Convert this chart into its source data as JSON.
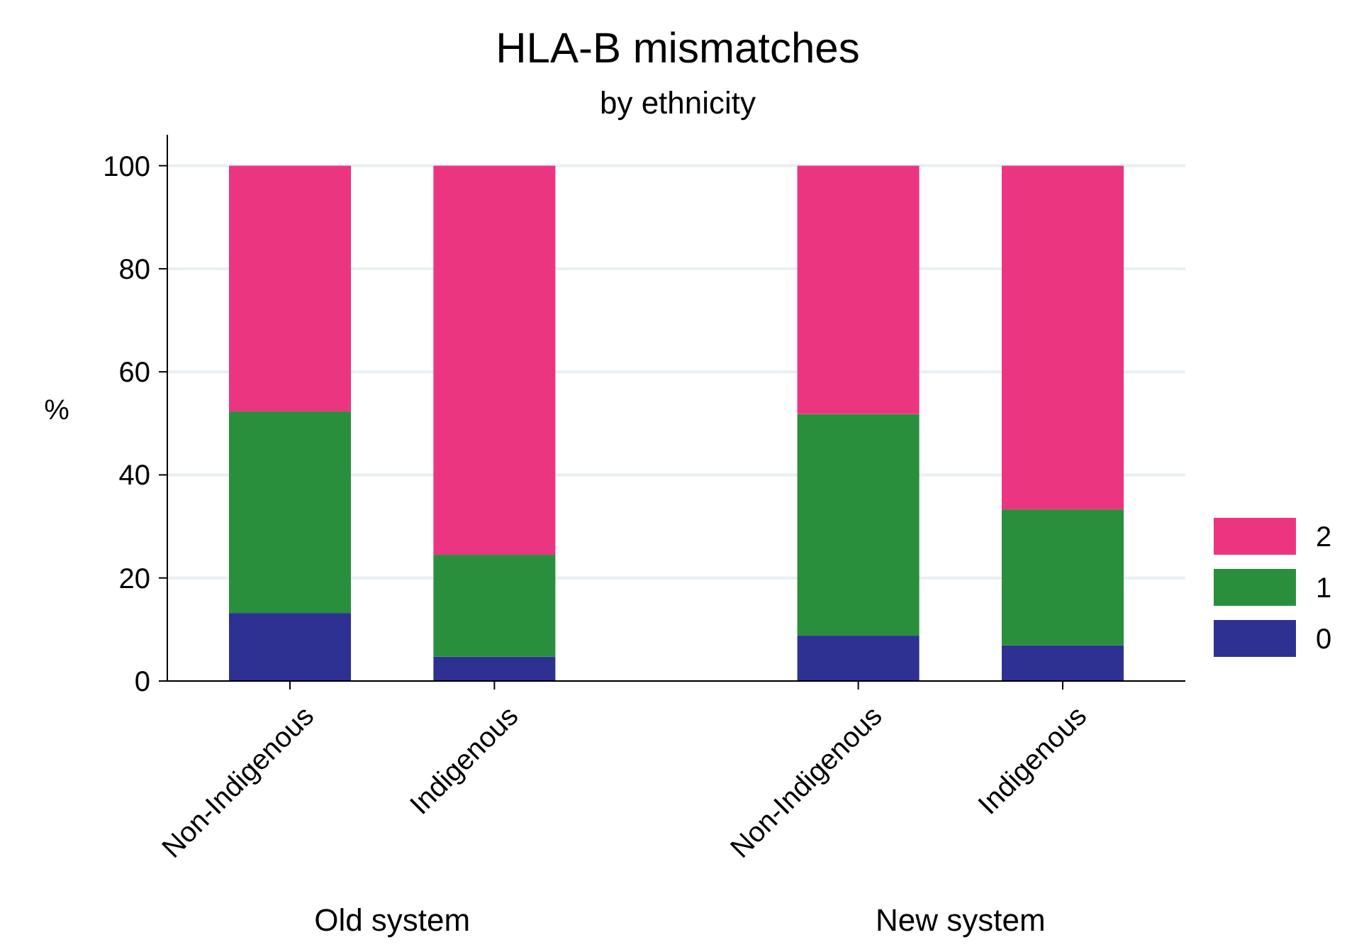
{
  "chart_data": {
    "type": "bar",
    "title": "HLA-B mismatches",
    "subtitle": "by ethnicity",
    "ylabel": "%",
    "categories": [
      "Non-Indigenous",
      "Indigenous",
      "Non-Indigenous",
      "Indigenous"
    ],
    "series": [
      {
        "name": "0",
        "color": "#2e3192",
        "values": [
          13.2,
          4.7,
          8.8,
          6.9
        ]
      },
      {
        "name": "1",
        "color": "#2a8f3c",
        "values": [
          39.1,
          19.8,
          43.0,
          26.4
        ]
      },
      {
        "name": "2",
        "color": "#ec3580",
        "values": [
          47.7,
          75.5,
          48.2,
          66.7
        ]
      }
    ],
    "stacked": true,
    "ylim": [
      0,
      106
    ],
    "yticks": [
      0,
      20,
      40,
      60,
      80,
      100
    ],
    "grid": "y",
    "legend": "right",
    "annotations": [
      "Old system",
      "New system"
    ]
  }
}
